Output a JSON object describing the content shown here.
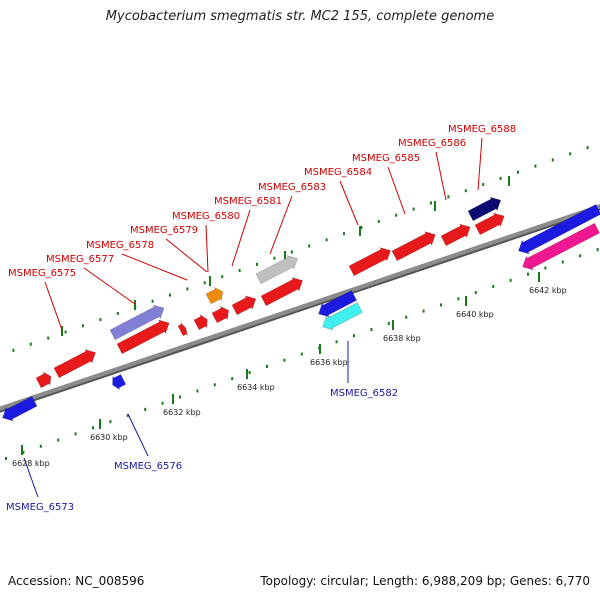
{
  "title": "Mycobacterium smegmatis str. MC2 155, complete genome",
  "footer": {
    "accession": "Accession: NC_008596",
    "topology": "Topology: circular; Length: 6,988,209 bp; Genes: 6,770"
  },
  "colors": {
    "backbone": "#8c8c8c",
    "tick": "#1a7a1a",
    "label_top": "#d00000",
    "label_bottom": "#1a1aa0"
  },
  "ticks": [
    {
      "label": "6628 kbp"
    },
    {
      "label": "6630 kbp"
    },
    {
      "label": "6632 kbp"
    },
    {
      "label": "6634 kbp"
    },
    {
      "label": "6636 kbp"
    },
    {
      "label": "6638 kbp"
    },
    {
      "label": "6640 kbp"
    },
    {
      "label": "6642 kbp"
    }
  ],
  "gene_labels": [
    {
      "text": "MSMEG_6575",
      "strand": "top"
    },
    {
      "text": "MSMEG_6577",
      "strand": "top"
    },
    {
      "text": "MSMEG_6578",
      "strand": "top"
    },
    {
      "text": "MSMEG_6579",
      "strand": "top"
    },
    {
      "text": "MSMEG_6580",
      "strand": "top"
    },
    {
      "text": "MSMEG_6581",
      "strand": "top"
    },
    {
      "text": "MSMEG_6583",
      "strand": "top"
    },
    {
      "text": "MSMEG_6584",
      "strand": "top"
    },
    {
      "text": "MSMEG_6585",
      "strand": "top"
    },
    {
      "text": "MSMEG_6586",
      "strand": "top"
    },
    {
      "text": "MSMEG_6588",
      "strand": "top"
    },
    {
      "text": "MSMEG_6582",
      "strand": "bottom"
    },
    {
      "text": "MSMEG_6576",
      "strand": "bottom"
    },
    {
      "text": "MSMEG_6573",
      "strand": "bottom"
    }
  ],
  "features": [
    {
      "color": "#e8191a",
      "strand": "+",
      "name": "gene"
    },
    {
      "color": "#e8191a",
      "strand": "+",
      "name": "gene"
    },
    {
      "color": "#e8191a",
      "strand": "+",
      "name": "gene"
    },
    {
      "color": "#e8191a",
      "strand": "+",
      "name": "gene"
    },
    {
      "color": "#e8191a",
      "strand": "+",
      "name": "gene"
    },
    {
      "color": "#e8191a",
      "strand": "+",
      "name": "gene"
    },
    {
      "color": "#e8191a",
      "strand": "+",
      "name": "gene"
    },
    {
      "color": "#e8191a",
      "strand": "+",
      "name": "gene"
    },
    {
      "color": "#e8191a",
      "strand": "+",
      "name": "gene"
    },
    {
      "color": "#e8191a",
      "strand": "+",
      "name": "gene"
    },
    {
      "color": "#e8191a",
      "strand": "+",
      "name": "gene"
    },
    {
      "color": "#e8191a",
      "strand": "+",
      "name": "gene"
    },
    {
      "color": "#8080d8",
      "strand": "+",
      "name": "gene"
    },
    {
      "color": "#f08c0a",
      "strand": "+",
      "name": "gene"
    },
    {
      "color": "#c0c0c0",
      "strand": "+",
      "name": "gene"
    },
    {
      "color": "#0a0a70",
      "strand": "+",
      "name": "gene"
    },
    {
      "color": "#1a1ae0",
      "strand": "-",
      "name": "gene"
    },
    {
      "color": "#1a1ae0",
      "strand": "-",
      "name": "gene"
    },
    {
      "color": "#1a1ae0",
      "strand": "-",
      "name": "gene"
    },
    {
      "color": "#1a1ae0",
      "strand": "-",
      "name": "gene"
    },
    {
      "color": "#40f0f0",
      "strand": "-",
      "name": "gene"
    },
    {
      "color": "#f01890",
      "strand": "-",
      "name": "gene"
    }
  ]
}
